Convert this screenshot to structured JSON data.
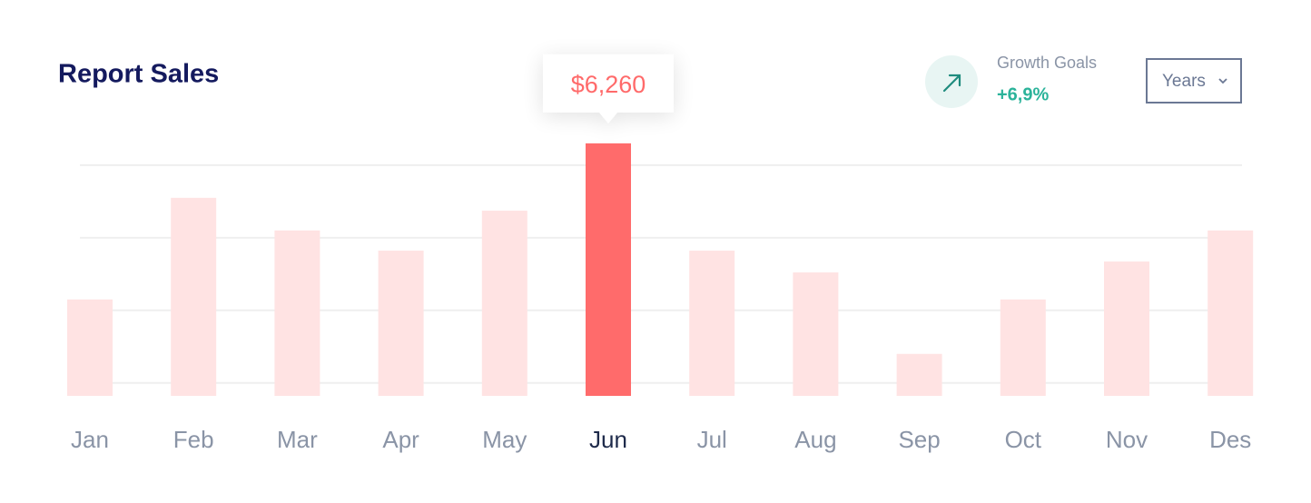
{
  "chart_data": {
    "type": "bar",
    "title": "Report Sales",
    "categories": [
      "Jan",
      "Feb",
      "Mar",
      "Apr",
      "May",
      "Jun",
      "Jul",
      "Aug",
      "Sep",
      "Oct",
      "Nov",
      "Des"
    ],
    "values": [
      2390,
      4910,
      4100,
      3600,
      4590,
      6260,
      3600,
      3060,
      1040,
      2390,
      3330,
      4100
    ],
    "value_labels": [
      null,
      null,
      null,
      null,
      null,
      "$6,260",
      null,
      null,
      null,
      null,
      null,
      null
    ],
    "color": "#ffe3e3",
    "highlight": 5,
    "highlight_color": "#ff6b6b",
    "ylim": [
      0,
      7000
    ],
    "yticks": [
      320,
      2120,
      3920,
      5720
    ],
    "grid": true
  },
  "growth": {
    "label": "Growth Goals",
    "value": "+6,9%"
  },
  "period_select": "Years"
}
